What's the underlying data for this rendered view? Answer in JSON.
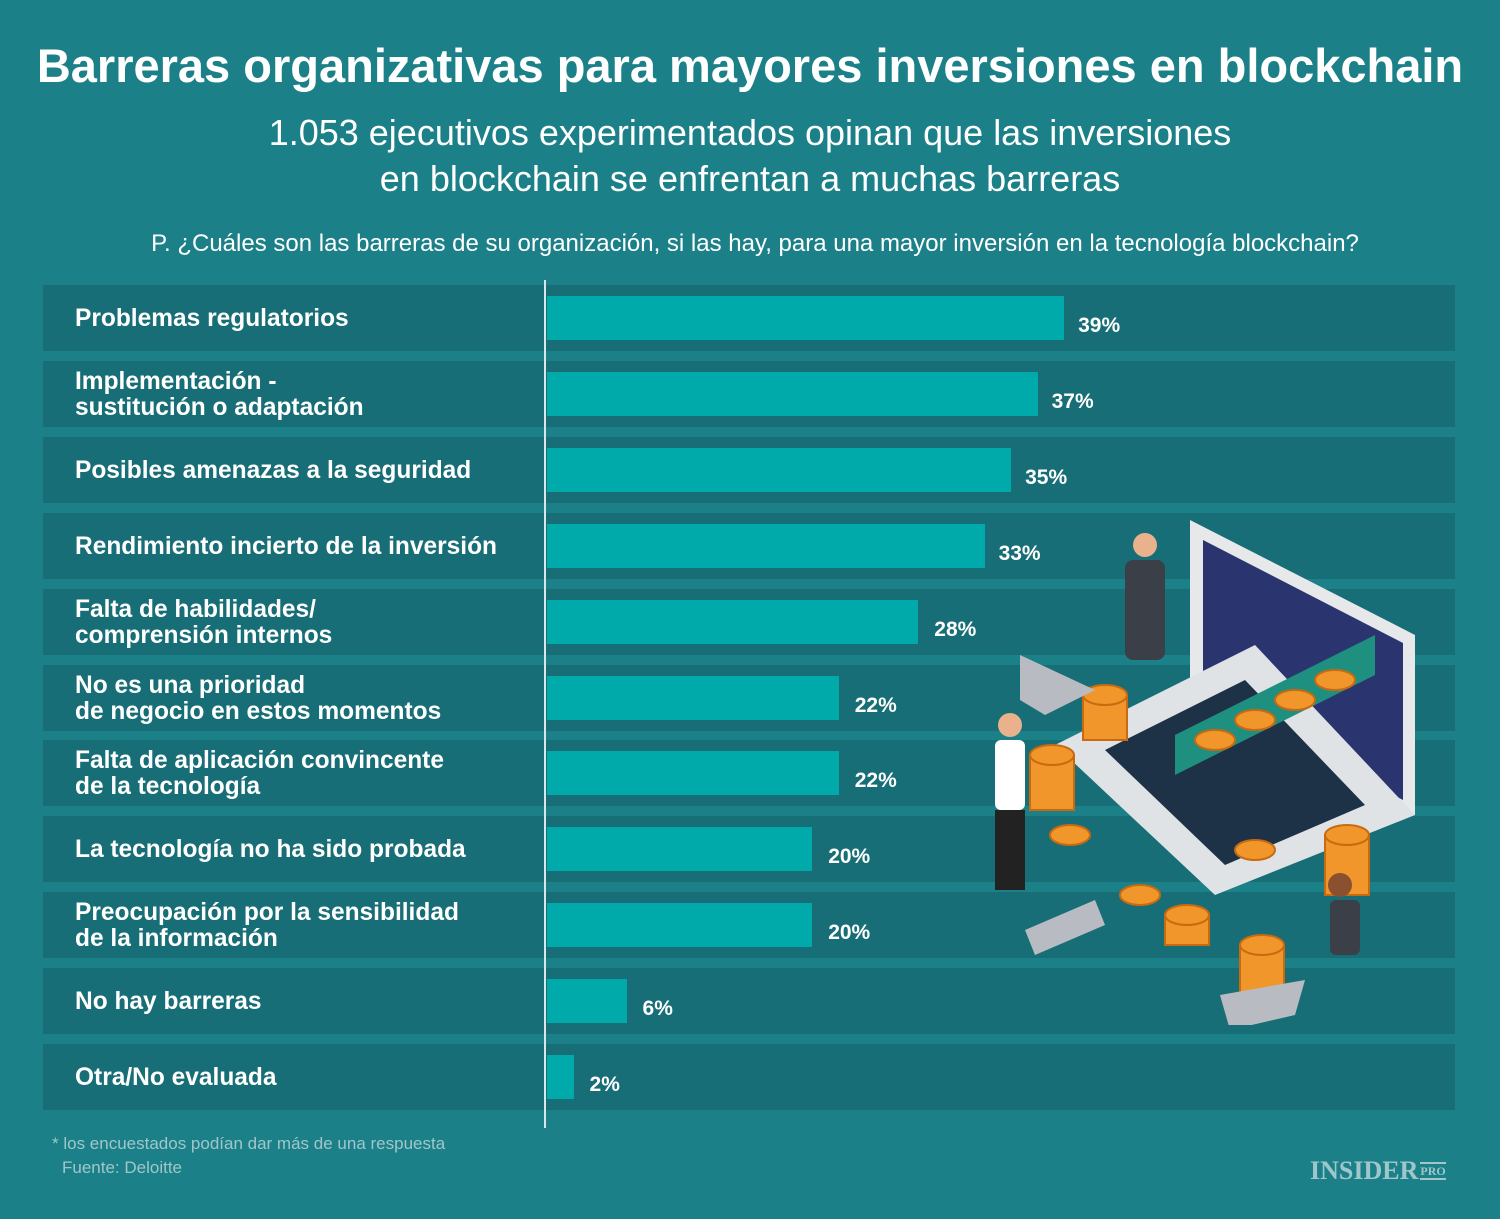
{
  "title": "Barreras organizativas para mayores inversiones en blockchain",
  "subtitle_line1": "1.053 ejecutivos experimentados opinan que las inversiones",
  "subtitle_line2": "en blockchain se enfrentan a muchas barreras",
  "question": "P. ¿Cuáles son las barreras de su organización, si las hay, para una mayor inversión en la tecnología blockchain?",
  "footnote": "* los encuestados podían dar más de una respuesta",
  "source": "Fuente: Deloitte",
  "logo": "INSIDER PRO",
  "colors": {
    "background": "#1c8088",
    "row": "#176e76",
    "bar": "#00aaab"
  },
  "chart_data": {
    "type": "bar",
    "orientation": "horizontal",
    "unit": "%",
    "categories": [
      [
        "Problemas regulatorios"
      ],
      [
        "Implementación -",
        "sustitución o adaptación"
      ],
      [
        "Posibles amenazas a la seguridad"
      ],
      [
        "Rendimiento incierto de la inversión"
      ],
      [
        "Falta de habilidades/",
        "comprensión internos"
      ],
      [
        "No es una prioridad",
        "de negocio en estos momentos"
      ],
      [
        "Falta de aplicación convincente",
        "de la tecnología"
      ],
      [
        "La tecnología no ha sido probada"
      ],
      [
        "Preocupación por la sensibilidad",
        "de la información"
      ],
      [
        "No hay barreras"
      ],
      [
        "Otra/No evaluada"
      ]
    ],
    "values": [
      39,
      37,
      35,
      33,
      28,
      22,
      22,
      20,
      20,
      6,
      2
    ],
    "data_labels": [
      "39%",
      "37%",
      "35%",
      "33%",
      "28%",
      "22%",
      "22%",
      "20%",
      "20%",
      "6%",
      "2%"
    ]
  }
}
